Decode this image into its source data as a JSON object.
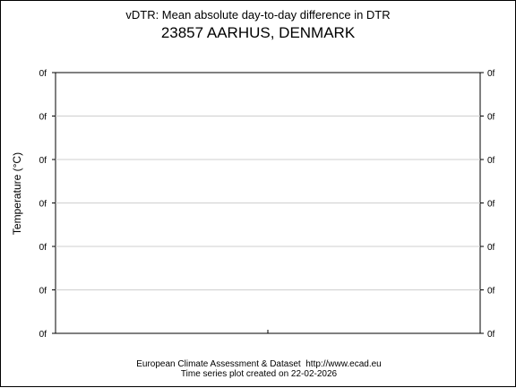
{
  "chart_data": {
    "type": "line",
    "title": "vDTR: Mean absolute day-to-day difference in DTR",
    "subtitle": "23857 AARHUS, DENMARK",
    "xlabel": "",
    "ylabel": "Temperature (°C)",
    "y_tick_labels": [
      "0f",
      "0f",
      "0f",
      "0f",
      "0f",
      "0f",
      "0f"
    ],
    "grid": true,
    "series": []
  },
  "footer": {
    "line1": "European Climate Assessment & Dataset  http://www.ecad.eu",
    "line2": "Time series plot created on 22-02-2026"
  }
}
